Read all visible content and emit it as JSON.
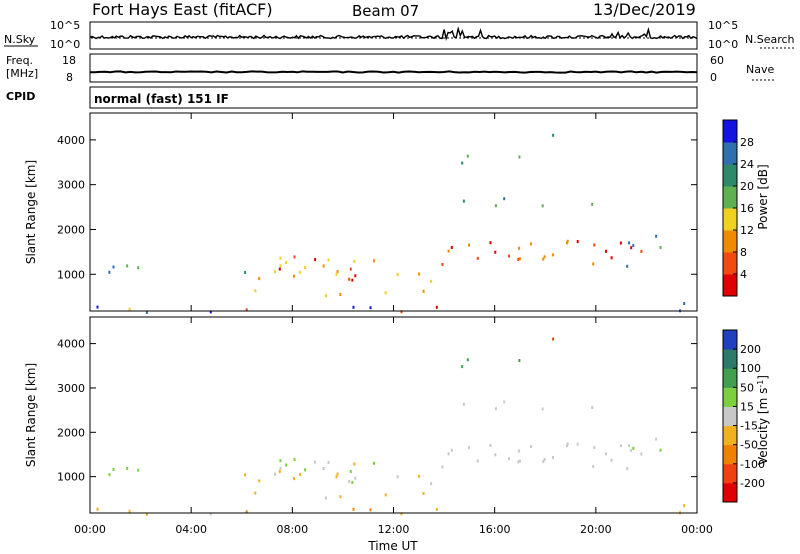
{
  "header": {
    "title": "Fort Hays East (fitACF)",
    "beam": "Beam 07",
    "date": "13/Dec/2019"
  },
  "chart_data": [
    {
      "type": "line",
      "panel": "noise",
      "left_label": "N.Sky",
      "right_label": "N.Search",
      "left_ticks": [
        "10^5",
        "10^0"
      ],
      "right_ticks": [
        "10^5",
        "10^0"
      ],
      "xlim": [
        0,
        24
      ]
    },
    {
      "type": "line",
      "panel": "freq-nave",
      "left_label_1": "Freq.",
      "left_label_2": "[MHz]",
      "right_label": "Nave",
      "left_ticks": [
        "18",
        "8"
      ],
      "right_ticks": [
        "60",
        "0"
      ],
      "xlim": [
        0,
        24
      ]
    },
    {
      "type": "table",
      "panel": "cpid",
      "label": "CPID",
      "value": "normal (fast) 151 IF"
    },
    {
      "type": "heatmap",
      "panel": "power",
      "ylabel": "Slant Range [km]",
      "yticks": [
        "4000",
        "3000",
        "2000",
        "1000"
      ],
      "ylim": [
        180,
        4600
      ],
      "xlim": [
        0,
        24
      ],
      "colorbar_label": "Power [dB]",
      "colorbar_ticks": [
        "28",
        "24",
        "20",
        "16",
        "12",
        "8",
        "4"
      ],
      "colors": [
        "#1414e0",
        "#2e6fb0",
        "#2c8a6a",
        "#5fb050",
        "#f0d020",
        "#f08a00",
        "#f04a10",
        "#e00000"
      ]
    },
    {
      "type": "heatmap",
      "panel": "velocity",
      "ylabel": "Slant Range [km]",
      "yticks": [
        "4000",
        "3000",
        "2000",
        "1000"
      ],
      "ylim": [
        180,
        4600
      ],
      "xlim": [
        0,
        24
      ],
      "xlabel": "Time UT",
      "xticks": [
        "00:00",
        "04:00",
        "08:00",
        "12:00",
        "16:00",
        "20:00",
        "00:00"
      ],
      "colorbar_label_1": "Velocity [m s",
      "colorbar_label_2": "-1",
      "colorbar_label_3": "]",
      "colorbar_ticks": [
        "200",
        "100",
        "50",
        "15",
        "-15",
        "-50",
        "-100",
        "-200"
      ],
      "colors": [
        "#2040c0",
        "#2c7a6a",
        "#40a050",
        "#7cd040",
        "#c8c8c8",
        "#f0b020",
        "#f08000",
        "#f04010",
        "#e00000"
      ]
    }
  ]
}
